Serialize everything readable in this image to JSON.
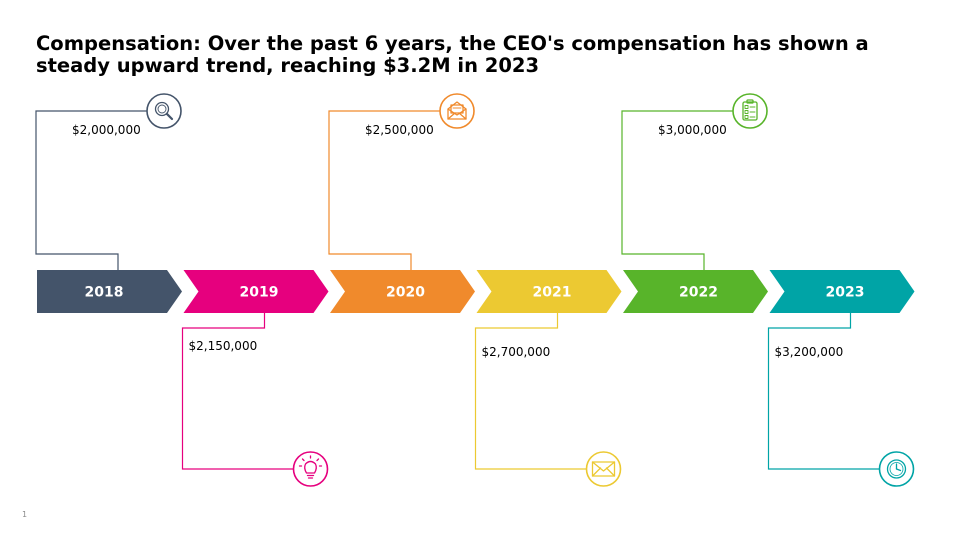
{
  "slide": {
    "title": "Compensation: Over the past 6 years, the CEO's compensation has shown a steady upward trend, reaching $3.2M in 2023",
    "page_number": "1"
  },
  "milestones": [
    {
      "year": "2018",
      "value": "$2,000,000",
      "color": "#44546a",
      "icon": "magnifier-icon",
      "side": "above"
    },
    {
      "year": "2019",
      "value": "$2,150,000",
      "color": "#e6007e",
      "icon": "lightbulb-icon",
      "side": "below"
    },
    {
      "year": "2020",
      "value": "$2,500,000",
      "color": "#f08a2c",
      "icon": "open-mail-icon",
      "side": "above"
    },
    {
      "year": "2021",
      "value": "$2,700,000",
      "color": "#ecc932",
      "icon": "mail-icon",
      "side": "below"
    },
    {
      "year": "2022",
      "value": "$3,000,000",
      "color": "#58b42a",
      "icon": "checklist-icon",
      "side": "above"
    },
    {
      "year": "2023",
      "value": "$3,200,000",
      "color": "#00a4a6",
      "icon": "clock-icon",
      "side": "below"
    }
  ]
}
